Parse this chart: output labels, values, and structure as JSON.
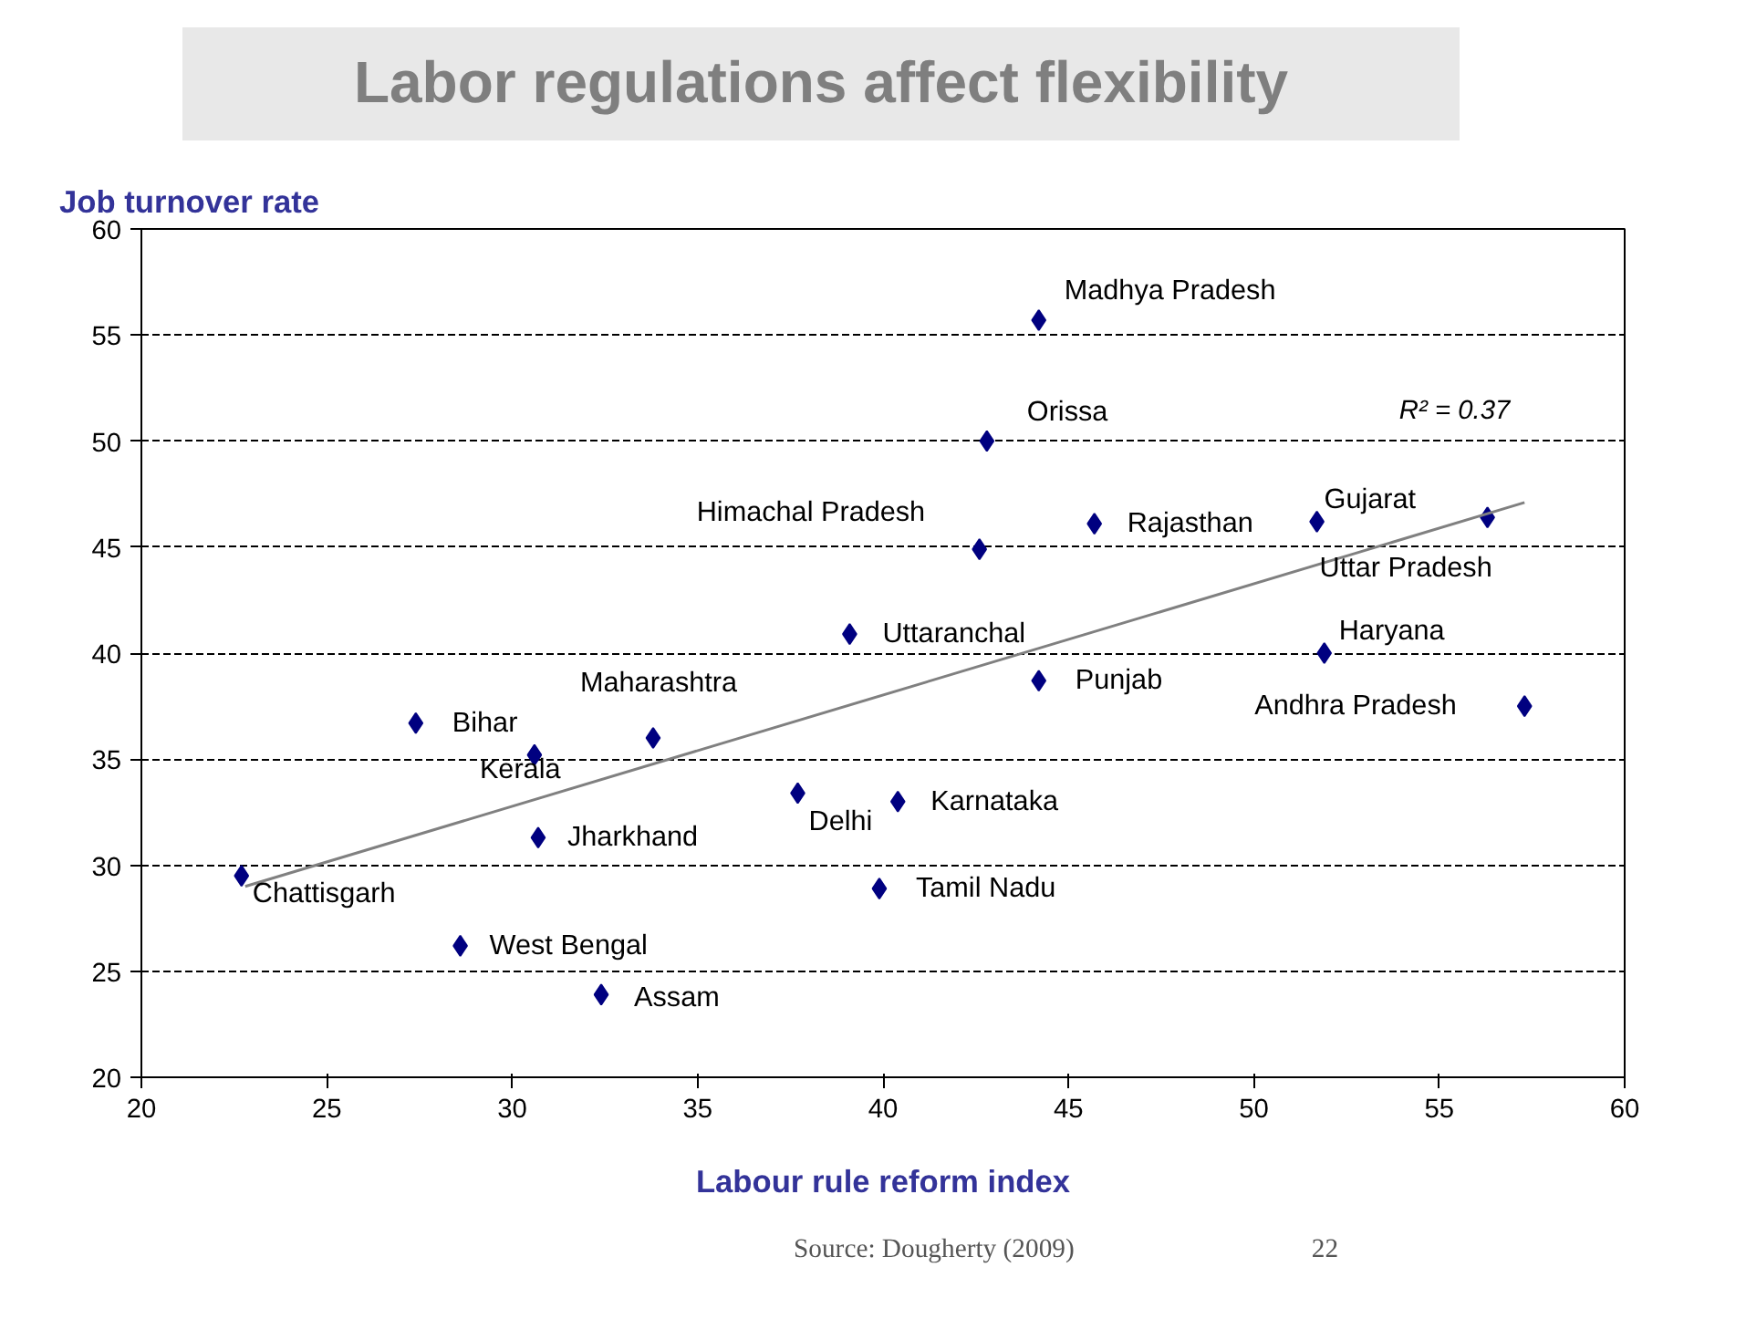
{
  "chart_data": {
    "type": "scatter",
    "title": "Labor regulations affect flexibility",
    "ylabel": "Job turnover rate",
    "xlabel": "Labour rule reform index",
    "xlim": [
      20,
      60
    ],
    "xticks": [
      20,
      25,
      30,
      35,
      40,
      45,
      50,
      55,
      60
    ],
    "ylim": [
      20,
      60
    ],
    "yticks": [
      20,
      25,
      30,
      35,
      40,
      45,
      50,
      55,
      60
    ],
    "grid": "y",
    "legend": false,
    "series": [
      {
        "marker": "diamond",
        "color": "#000080",
        "x": [
          22.7,
          28.6,
          32.4,
          27.4,
          30.6,
          30.7,
          33.8,
          37.7,
          40.4,
          39.9,
          39.1,
          42.6,
          42.8,
          44.2,
          45.7,
          44.2,
          51.7,
          56.3,
          51.9,
          57.3
        ],
        "values": [
          29.5,
          26.2,
          23.9,
          36.7,
          35.2,
          31.3,
          36.0,
          33.4,
          33.0,
          28.9,
          40.9,
          44.9,
          50.0,
          55.7,
          46.1,
          38.7,
          46.2,
          46.4,
          40.0,
          37.5
        ]
      },
      {
        "type": "line",
        "name": "R² = 0.37",
        "color": "#808080",
        "x": [
          22.8,
          57.3
        ],
        "values": [
          29.0,
          47.1
        ]
      }
    ],
    "annotations": [
      {
        "text": "Chattisgarh",
        "x": 22.7,
        "y": 29.5
      },
      {
        "text": "West Bengal",
        "x": 28.6,
        "y": 26.2
      },
      {
        "text": "Assam",
        "x": 32.4,
        "y": 23.9
      },
      {
        "text": "Bihar",
        "x": 27.4,
        "y": 36.7
      },
      {
        "text": "Kerala",
        "x": 30.6,
        "y": 35.2
      },
      {
        "text": "Jharkhand",
        "x": 30.7,
        "y": 31.3
      },
      {
        "text": "Maharashtra",
        "x": 33.8,
        "y": 36.0
      },
      {
        "text": "Delhi",
        "x": 37.7,
        "y": 33.4
      },
      {
        "text": "Karnataka",
        "x": 40.4,
        "y": 33.0
      },
      {
        "text": "Tamil Nadu",
        "x": 39.9,
        "y": 28.9
      },
      {
        "text": "Uttaranchal",
        "x": 39.1,
        "y": 40.9
      },
      {
        "text": "Himachal Pradesh",
        "x": 42.6,
        "y": 44.9
      },
      {
        "text": "Orissa",
        "x": 42.8,
        "y": 50.0
      },
      {
        "text": "Madhya Pradesh",
        "x": 44.2,
        "y": 55.7
      },
      {
        "text": "Rajasthan",
        "x": 45.7,
        "y": 46.1
      },
      {
        "text": "Punjab",
        "x": 44.2,
        "y": 38.7
      },
      {
        "text": "Gujarat",
        "x": 51.7,
        "y": 46.2
      },
      {
        "text": "Uttar Pradesh",
        "x": 56.3,
        "y": 46.4
      },
      {
        "text": "Haryana",
        "x": 51.9,
        "y": 40.0
      },
      {
        "text": "Andhra Pradesh",
        "x": 57.3,
        "y": 37.5
      },
      "Source: Dougherty (2009)",
      "22"
    ]
  }
}
